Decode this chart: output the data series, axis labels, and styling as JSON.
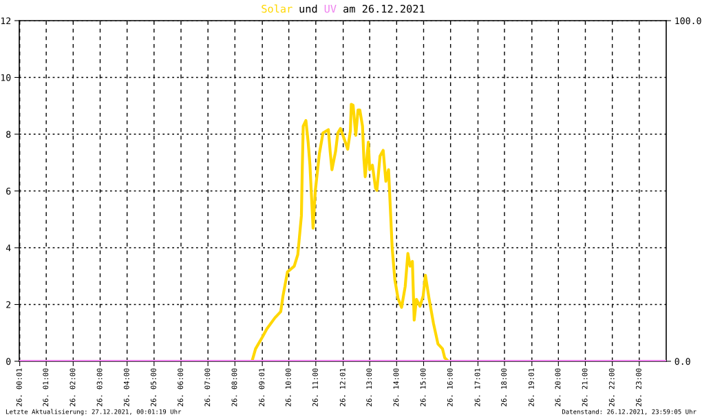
{
  "chart_data": {
    "type": "line",
    "title": "am 26.12.2021",
    "legend": "top",
    "legend_title": "und",
    "series": [
      {
        "name": "Solar",
        "color": "#ffd700",
        "x": [
          "2021-12-26T00:00",
          "2021-12-26T08:38",
          "2021-12-26T08:46",
          "2021-12-26T09:01",
          "2021-12-26T09:11",
          "2021-12-26T09:29",
          "2021-12-26T09:42",
          "2021-12-26T09:47",
          "2021-12-26T09:57",
          "2021-12-26T10:12",
          "2021-12-26T10:20",
          "2021-12-26T10:28",
          "2021-12-26T10:30",
          "2021-12-26T10:32",
          "2021-12-26T10:38",
          "2021-12-26T10:43",
          "2021-12-26T10:47",
          "2021-12-26T10:54",
          "2021-12-26T10:59",
          "2021-12-26T11:08",
          "2021-12-26T11:16",
          "2021-12-26T11:28",
          "2021-12-26T11:32",
          "2021-12-26T11:36",
          "2021-12-26T11:44",
          "2021-12-26T11:49",
          "2021-12-26T11:55",
          "2021-12-26T12:04",
          "2021-12-26T12:11",
          "2021-12-26T12:17",
          "2021-12-26T12:19",
          "2021-12-26T12:23",
          "2021-12-26T12:29",
          "2021-12-26T12:34",
          "2021-12-26T12:38",
          "2021-12-26T12:44",
          "2021-12-26T12:47",
          "2021-12-26T12:50",
          "2021-12-26T12:57",
          "2021-12-26T13:00",
          "2021-12-26T13:06",
          "2021-12-26T13:13",
          "2021-12-26T13:16",
          "2021-12-26T13:23",
          "2021-12-26T13:30",
          "2021-12-26T13:36",
          "2021-12-26T13:42",
          "2021-12-26T13:46",
          "2021-12-26T13:50",
          "2021-12-26T13:56",
          "2021-12-26T14:03",
          "2021-12-26T14:11",
          "2021-12-26T14:19",
          "2021-12-26T14:25",
          "2021-12-26T14:30",
          "2021-12-26T14:35",
          "2021-12-26T14:39",
          "2021-12-26T14:44",
          "2021-12-26T14:52",
          "2021-12-26T14:59",
          "2021-12-26T15:04",
          "2021-12-26T15:12",
          "2021-12-26T15:22",
          "2021-12-26T15:32",
          "2021-12-26T15:42",
          "2021-12-26T15:47",
          "2021-12-26T15:55",
          "2021-12-27T00:00"
        ],
        "values": [
          0,
          0,
          0.44,
          0.85,
          1.14,
          1.53,
          1.75,
          2.3,
          3.15,
          3.35,
          3.76,
          5.13,
          6.83,
          8.28,
          8.48,
          7.72,
          6.91,
          4.69,
          6.02,
          7.31,
          8.04,
          8.16,
          7.39,
          6.75,
          7.39,
          8.04,
          8.2,
          7.8,
          7.47,
          8.12,
          9.05,
          9.02,
          7.96,
          8.85,
          8.85,
          8.28,
          7.15,
          6.5,
          7.72,
          6.75,
          6.91,
          6.1,
          6.02,
          7.23,
          7.43,
          6.34,
          6.75,
          5.37,
          4.0,
          2.87,
          2.22,
          1.9,
          2.63,
          3.8,
          3.35,
          3.52,
          1.45,
          2.18,
          1.94,
          2.3,
          3.03,
          2.22,
          1.33,
          0.61,
          0.44,
          0.12,
          0,
          0
        ]
      },
      {
        "name": "UV",
        "color": "#ee82ee",
        "axis": "y2",
        "x": [
          "2021-12-26T00:00",
          "2021-12-27T00:00"
        ],
        "values": [
          0.0,
          0.0
        ]
      }
    ],
    "xlim": [
      "2021-12-26T00:00",
      "2021-12-27T00:00"
    ],
    "xticks": [
      {
        "value": "2021-12-26T00:01",
        "label": "26. 00:01"
      },
      {
        "value": "2021-12-26T01:00",
        "label": "26. 01:00"
      },
      {
        "value": "2021-12-26T02:00",
        "label": "26. 02:00"
      },
      {
        "value": "2021-12-26T03:00",
        "label": "26. 03:00"
      },
      {
        "value": "2021-12-26T04:00",
        "label": "26. 04:00"
      },
      {
        "value": "2021-12-26T05:00",
        "label": "26. 05:00"
      },
      {
        "value": "2021-12-26T06:00",
        "label": "26. 06:00"
      },
      {
        "value": "2021-12-26T07:00",
        "label": "26. 07:00"
      },
      {
        "value": "2021-12-26T08:00",
        "label": "26. 08:00"
      },
      {
        "value": "2021-12-26T09:01",
        "label": "26. 09:01"
      },
      {
        "value": "2021-12-26T10:00",
        "label": "26. 10:00"
      },
      {
        "value": "2021-12-26T11:00",
        "label": "26. 11:00"
      },
      {
        "value": "2021-12-26T12:01",
        "label": "26. 12:01"
      },
      {
        "value": "2021-12-26T13:00",
        "label": "26. 13:00"
      },
      {
        "value": "2021-12-26T14:00",
        "label": "26. 14:00"
      },
      {
        "value": "2021-12-26T15:00",
        "label": "26. 15:00"
      },
      {
        "value": "2021-12-26T16:00",
        "label": "26. 16:00"
      },
      {
        "value": "2021-12-26T17:01",
        "label": "26. 17:01"
      },
      {
        "value": "2021-12-26T18:00",
        "label": "26. 18:00"
      },
      {
        "value": "2021-12-26T19:01",
        "label": "26. 19:01"
      },
      {
        "value": "2021-12-26T20:00",
        "label": "26. 20:00"
      },
      {
        "value": "2021-12-26T21:00",
        "label": "26. 21:00"
      },
      {
        "value": "2021-12-26T22:00",
        "label": "26. 22:00"
      },
      {
        "value": "2021-12-26T23:00",
        "label": "26. 23:00"
      }
    ],
    "ylim": [
      0,
      12
    ],
    "yticks": [
      0,
      2,
      4,
      6,
      8,
      10,
      12
    ],
    "y2lim": [
      0,
      100
    ],
    "y2ticks": [
      {
        "value": 0,
        "label": "0.0"
      },
      {
        "value": 100,
        "label": "100.0"
      }
    ],
    "grid": true,
    "line_style": "solid",
    "marker": "none",
    "annotations": [
      "Letzte Aktualisierung: 27.12.2021, 00:01:19 Uhr",
      "Datenstand: 26.12.2021, 23:59:05 Uhr"
    ]
  }
}
